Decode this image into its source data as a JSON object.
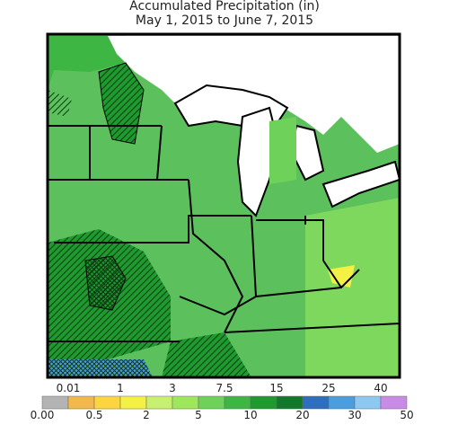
{
  "header": {
    "title": "Accumulated Precipitation (in)",
    "subtitle": "May 1, 2015 to June 7, 2015"
  },
  "legend": {
    "labels": [
      "0.00",
      "0.01",
      "0.5",
      "1",
      "2",
      "3",
      "5",
      "7.5",
      "10",
      "15",
      "20",
      "25",
      "30",
      "40",
      "50"
    ],
    "colors": [
      "#b4b4b4",
      "#f2b84b",
      "#fcd540",
      "#f4f044",
      "#c8f070",
      "#9ee65a",
      "#6ed25a",
      "#3eb644",
      "#1e9a2e",
      "#12782a",
      "#2d6ebe",
      "#4a9ee0",
      "#8cc8f0",
      "#c88ce6"
    ]
  }
}
